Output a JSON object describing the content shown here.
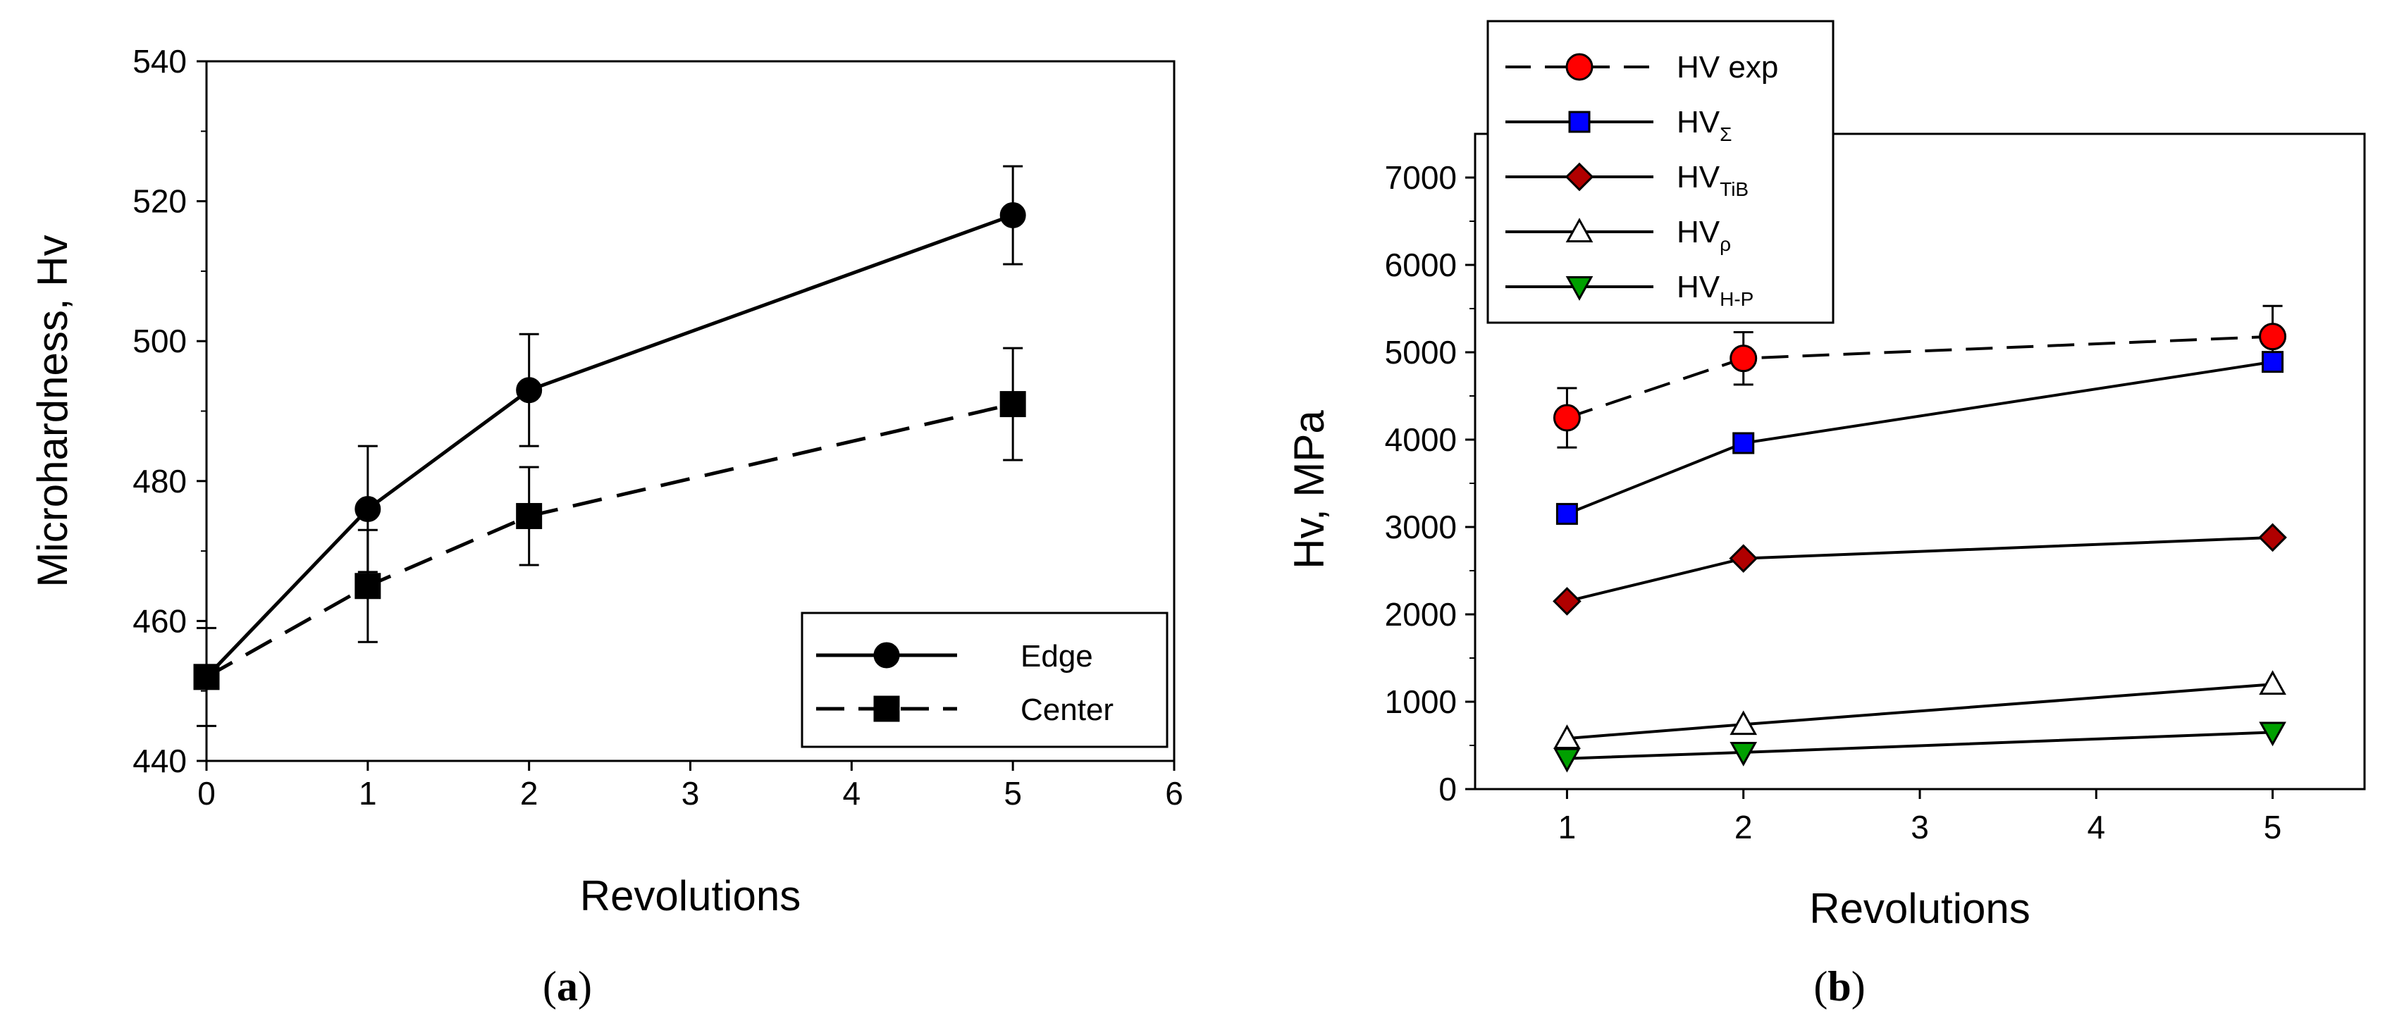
{
  "chart_data": [
    {
      "id": "a",
      "type": "line",
      "caption_open": "(",
      "caption_letter": "a",
      "caption_close": ")",
      "xlabel": "Revolutions",
      "ylabel": "Microhardness, Hv",
      "xlim": [
        0,
        6
      ],
      "ylim": [
        440,
        540
      ],
      "xticks": [
        0,
        1,
        2,
        3,
        4,
        5,
        6
      ],
      "yticks": [
        440,
        460,
        480,
        500,
        520,
        540
      ],
      "grid": false,
      "legend_position": "bottom-right",
      "series": [
        {
          "name": "Edge",
          "marker": "circle",
          "line": "solid",
          "fill": "#000000",
          "points": [
            {
              "x": 0,
              "y": 452,
              "err": 0
            },
            {
              "x": 1,
              "y": 476,
              "err": 9
            },
            {
              "x": 2,
              "y": 493,
              "err": 8
            },
            {
              "x": 5,
              "y": 518,
              "err": 7
            }
          ]
        },
        {
          "name": "Center",
          "marker": "square",
          "line": "dashed",
          "fill": "#000000",
          "points": [
            {
              "x": 0,
              "y": 452,
              "err": 7
            },
            {
              "x": 1,
              "y": 465,
              "err": 8
            },
            {
              "x": 2,
              "y": 475,
              "err": 7
            },
            {
              "x": 5,
              "y": 491,
              "err": 8
            }
          ]
        }
      ]
    },
    {
      "id": "b",
      "type": "line",
      "caption_open": "(",
      "caption_letter": "b",
      "caption_close": ")",
      "xlabel": "Revolutions",
      "ylabel": "Hv, MPa",
      "xcategories": [
        "1",
        "2",
        "3",
        "4",
        "5"
      ],
      "ylim": [
        0,
        7500
      ],
      "yticks": [
        0,
        1000,
        2000,
        3000,
        4000,
        5000,
        6000,
        7000
      ],
      "grid": false,
      "legend_position": "top-left",
      "series": [
        {
          "name": "HV exp",
          "subscript": "",
          "marker": "circle",
          "line": "dashed",
          "fill": "#ff0000",
          "points": [
            {
              "x": 1,
              "y": 4250,
              "err": 340
            },
            {
              "x": 2,
              "y": 4930,
              "err": 300
            },
            {
              "x": 5,
              "y": 5180,
              "err": 350
            }
          ]
        },
        {
          "name": "HV",
          "subscript": "Σ",
          "marker": "square",
          "line": "solid",
          "fill": "#0000ff",
          "points": [
            {
              "x": 1,
              "y": 3150
            },
            {
              "x": 2,
              "y": 3960
            },
            {
              "x": 5,
              "y": 4890
            }
          ]
        },
        {
          "name": "HV",
          "subscript": "TiB",
          "marker": "diamond",
          "line": "solid",
          "fill": "#b00000",
          "points": [
            {
              "x": 1,
              "y": 2150
            },
            {
              "x": 2,
              "y": 2640
            },
            {
              "x": 5,
              "y": 2880
            }
          ]
        },
        {
          "name": "HV",
          "subscript": "ρ",
          "marker": "triangle-up",
          "line": "solid",
          "fill": "#ffffff",
          "points": [
            {
              "x": 1,
              "y": 580
            },
            {
              "x": 2,
              "y": 740
            },
            {
              "x": 5,
              "y": 1200
            }
          ]
        },
        {
          "name": "HV",
          "subscript": "H-P",
          "marker": "triangle-down",
          "line": "solid",
          "fill": "#00a000",
          "points": [
            {
              "x": 1,
              "y": 350
            },
            {
              "x": 2,
              "y": 420
            },
            {
              "x": 5,
              "y": 650
            }
          ]
        }
      ]
    }
  ]
}
